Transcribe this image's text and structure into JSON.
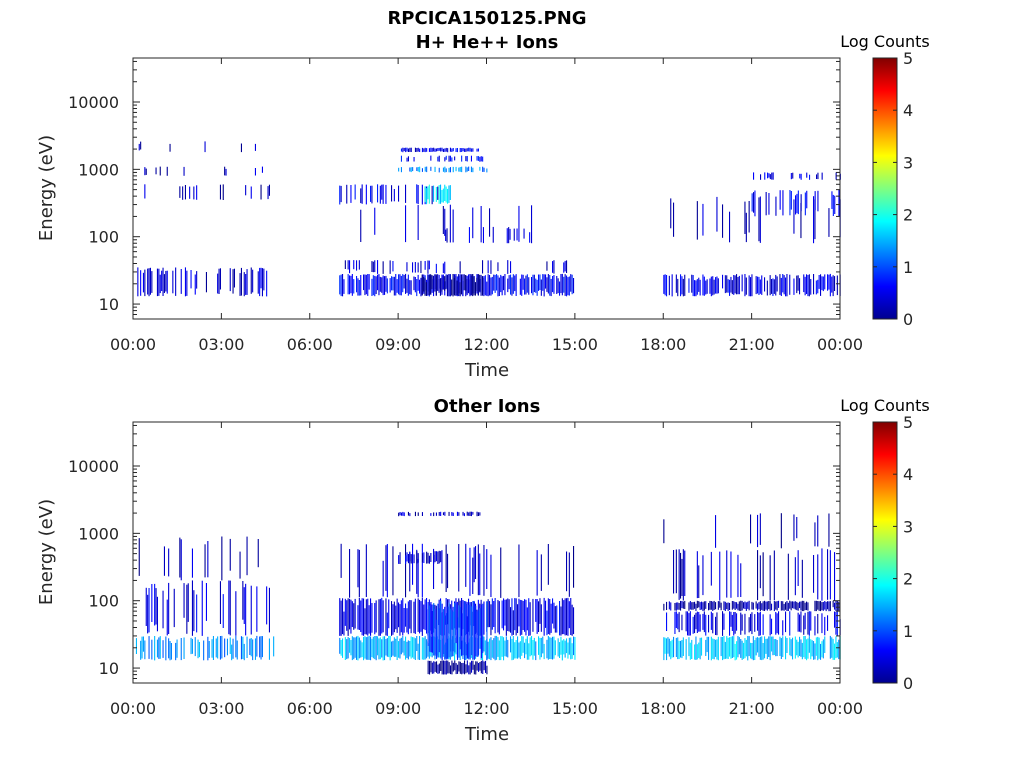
{
  "chart_data": [
    {
      "type": "heatmap",
      "title": "RPCICA150125.PNG",
      "subtitle": "H+ He++ Ions",
      "xlabel": "Time",
      "ylabel": "Energy (eV)",
      "x_ticks": [
        "00:00",
        "03:00",
        "06:00",
        "09:00",
        "12:00",
        "15:00",
        "18:00",
        "21:00",
        "00:00"
      ],
      "x_range_hours": [
        0,
        24
      ],
      "y_scale": "log",
      "y_range": [
        6,
        45000
      ],
      "y_ticks": [
        10,
        100,
        1000,
        10000
      ],
      "y_tick_labels": [
        "10",
        "100",
        "1000",
        "10000"
      ],
      "colorbar": {
        "label": "Log Counts",
        "range": [
          0,
          5
        ],
        "ticks": [
          "0",
          "1",
          "2",
          "3",
          "4",
          "5"
        ],
        "colormap": "jet"
      },
      "regions": [
        {
          "t": [
            0.1,
            4.7
          ],
          "e": [
            13,
            35
          ],
          "level": 0.4,
          "density": 0.45
        },
        {
          "t": [
            0.1,
            4.7
          ],
          "e": [
            350,
            600
          ],
          "level": 0.3,
          "density": 0.12
        },
        {
          "t": [
            0.1,
            4.7
          ],
          "e": [
            800,
            1100
          ],
          "level": 0.3,
          "density": 0.08
        },
        {
          "t": [
            0.1,
            4.7
          ],
          "e": [
            1800,
            2600
          ],
          "level": 0.2,
          "density": 0.04
        },
        {
          "t": [
            7.0,
            15.0
          ],
          "e": [
            13,
            28
          ],
          "level": 0.6,
          "density": 0.9
        },
        {
          "t": [
            7.0,
            15.0
          ],
          "e": [
            28,
            45
          ],
          "level": 0.4,
          "density": 0.25
        },
        {
          "t": [
            9.8,
            11.9
          ],
          "e": [
            13,
            28
          ],
          "level": 0.15,
          "density": 1.0
        },
        {
          "t": [
            7.0,
            10.5
          ],
          "e": [
            300,
            600
          ],
          "level": 0.5,
          "density": 0.3
        },
        {
          "t": [
            9.9,
            10.8
          ],
          "e": [
            300,
            600
          ],
          "level": 1.8,
          "density": 0.85
        },
        {
          "t": [
            9.0,
            12.0
          ],
          "e": [
            1800,
            2100
          ],
          "level": 0.5,
          "density": 0.7
        },
        {
          "t": [
            9.0,
            12.0
          ],
          "e": [
            900,
            1100
          ],
          "level": 1.3,
          "density": 0.6
        },
        {
          "t": [
            9.0,
            12.0
          ],
          "e": [
            1300,
            1600
          ],
          "level": 0.6,
          "density": 0.35
        },
        {
          "t": [
            7.0,
            14.0
          ],
          "e": [
            80,
            300
          ],
          "level": 0.3,
          "density": 0.1
        },
        {
          "t": [
            10.5,
            13.5
          ],
          "e": [
            80,
            140
          ],
          "level": 0.4,
          "density": 0.2
        },
        {
          "t": [
            18.0,
            24.0
          ],
          "e": [
            13,
            28
          ],
          "level": 0.45,
          "density": 0.75
        },
        {
          "t": [
            18.0,
            24.0
          ],
          "e": [
            80,
            400
          ],
          "level": 0.3,
          "density": 0.15
        },
        {
          "t": [
            21.0,
            24.0
          ],
          "e": [
            200,
            500
          ],
          "level": 0.6,
          "density": 0.35
        },
        {
          "t": [
            21.0,
            24.0
          ],
          "e": [
            700,
            900
          ],
          "level": 0.5,
          "density": 0.3
        }
      ]
    },
    {
      "type": "heatmap",
      "title": "Other Ions",
      "xlabel": "Time",
      "ylabel": "Energy (eV)",
      "x_ticks": [
        "00:00",
        "03:00",
        "06:00",
        "09:00",
        "12:00",
        "15:00",
        "18:00",
        "21:00",
        "00:00"
      ],
      "x_range_hours": [
        0,
        24
      ],
      "y_scale": "log",
      "y_range": [
        6,
        45000
      ],
      "y_ticks": [
        10,
        100,
        1000,
        10000
      ],
      "y_tick_labels": [
        "10",
        "100",
        "1000",
        "10000"
      ],
      "colorbar": {
        "label": "Log Counts",
        "range": [
          0,
          5
        ],
        "ticks": [
          "0",
          "1",
          "2",
          "3",
          "4",
          "5"
        ],
        "colormap": "jet"
      },
      "regions": [
        {
          "t": [
            0.1,
            4.8
          ],
          "e": [
            13,
            30
          ],
          "level": 1.3,
          "density": 0.55
        },
        {
          "t": [
            0.1,
            4.8
          ],
          "e": [
            30,
            200
          ],
          "level": 0.5,
          "density": 0.3
        },
        {
          "t": [
            0.1,
            4.8
          ],
          "e": [
            200,
            900
          ],
          "level": 0.3,
          "density": 0.08
        },
        {
          "t": [
            7.0,
            15.0
          ],
          "e": [
            13,
            30
          ],
          "level": 1.5,
          "density": 0.9
        },
        {
          "t": [
            7.0,
            15.0
          ],
          "e": [
            30,
            110
          ],
          "level": 0.5,
          "density": 0.9
        },
        {
          "t": [
            7.0,
            15.0
          ],
          "e": [
            110,
            700
          ],
          "level": 0.35,
          "density": 0.2
        },
        {
          "t": [
            10.0,
            12.0
          ],
          "e": [
            13,
            100
          ],
          "level": 0.9,
          "density": 0.95
        },
        {
          "t": [
            10.0,
            12.0
          ],
          "e": [
            8,
            13
          ],
          "level": 0.1,
          "density": 1.0
        },
        {
          "t": [
            9.0,
            10.5
          ],
          "e": [
            350,
            550
          ],
          "level": 0.4,
          "density": 0.7
        },
        {
          "t": [
            9.0,
            11.8
          ],
          "e": [
            1800,
            2100
          ],
          "level": 0.3,
          "density": 0.5
        },
        {
          "t": [
            18.0,
            24.0
          ],
          "e": [
            13,
            30
          ],
          "level": 1.6,
          "density": 0.85
        },
        {
          "t": [
            18.0,
            24.0
          ],
          "e": [
            30,
            70
          ],
          "level": 0.5,
          "density": 0.5
        },
        {
          "t": [
            18.0,
            24.0
          ],
          "e": [
            70,
            100
          ],
          "level": 0.15,
          "density": 0.85
        },
        {
          "t": [
            18.0,
            24.0
          ],
          "e": [
            100,
            600
          ],
          "level": 0.3,
          "density": 0.25
        },
        {
          "t": [
            18.0,
            24.0
          ],
          "e": [
            600,
            2000
          ],
          "level": 0.2,
          "density": 0.05
        }
      ]
    }
  ]
}
